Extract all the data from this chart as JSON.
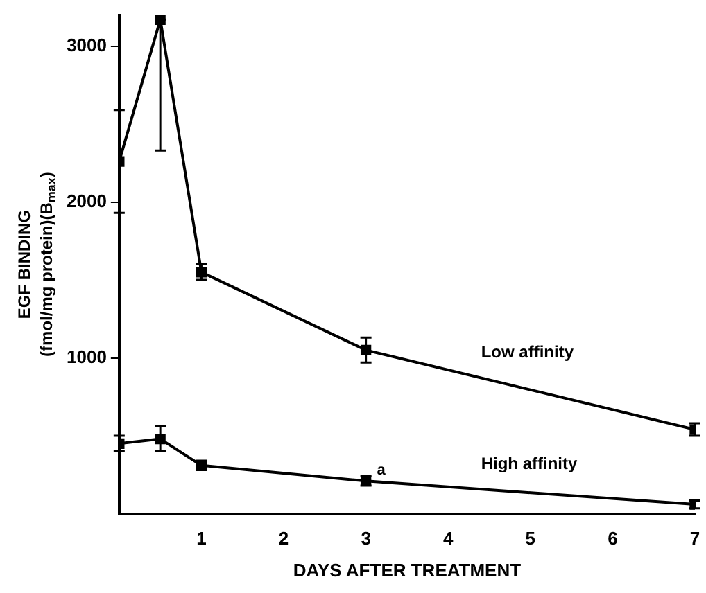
{
  "chart_data": {
    "type": "line",
    "xlabel": "DAYS AFTER TREATMENT",
    "ylabel": "EGF BINDING\n(fmol/mg protein)(B$_{max}$)",
    "x": [
      0,
      0.5,
      1,
      3,
      7
    ],
    "series": [
      {
        "name": "Low affinity",
        "color": "#000000",
        "values": [
          2260,
          3170,
          1550,
          1050,
          540
        ],
        "errors": [
          [
            1930,
            2590
          ],
          [
            2330,
            3170
          ],
          50,
          80,
          40
        ]
      },
      {
        "name": "High affinity",
        "color": "#000000",
        "values": [
          450,
          480,
          310,
          210,
          60
        ],
        "errors": [
          50,
          80,
          30,
          30,
          25
        ]
      }
    ],
    "xlim": [
      0,
      7
    ],
    "xticks": [
      {
        "value": 0,
        "label": null
      },
      1,
      2,
      3,
      4,
      5,
      6,
      7
    ],
    "ylim": [
      0,
      3200
    ],
    "yticks": [
      1000,
      2000,
      3000
    ],
    "annotations": [
      {
        "text": "a",
        "x": 3,
        "y": 210
      }
    ],
    "grid": false,
    "legend": false,
    "marker": "square",
    "line_style": "solid"
  }
}
